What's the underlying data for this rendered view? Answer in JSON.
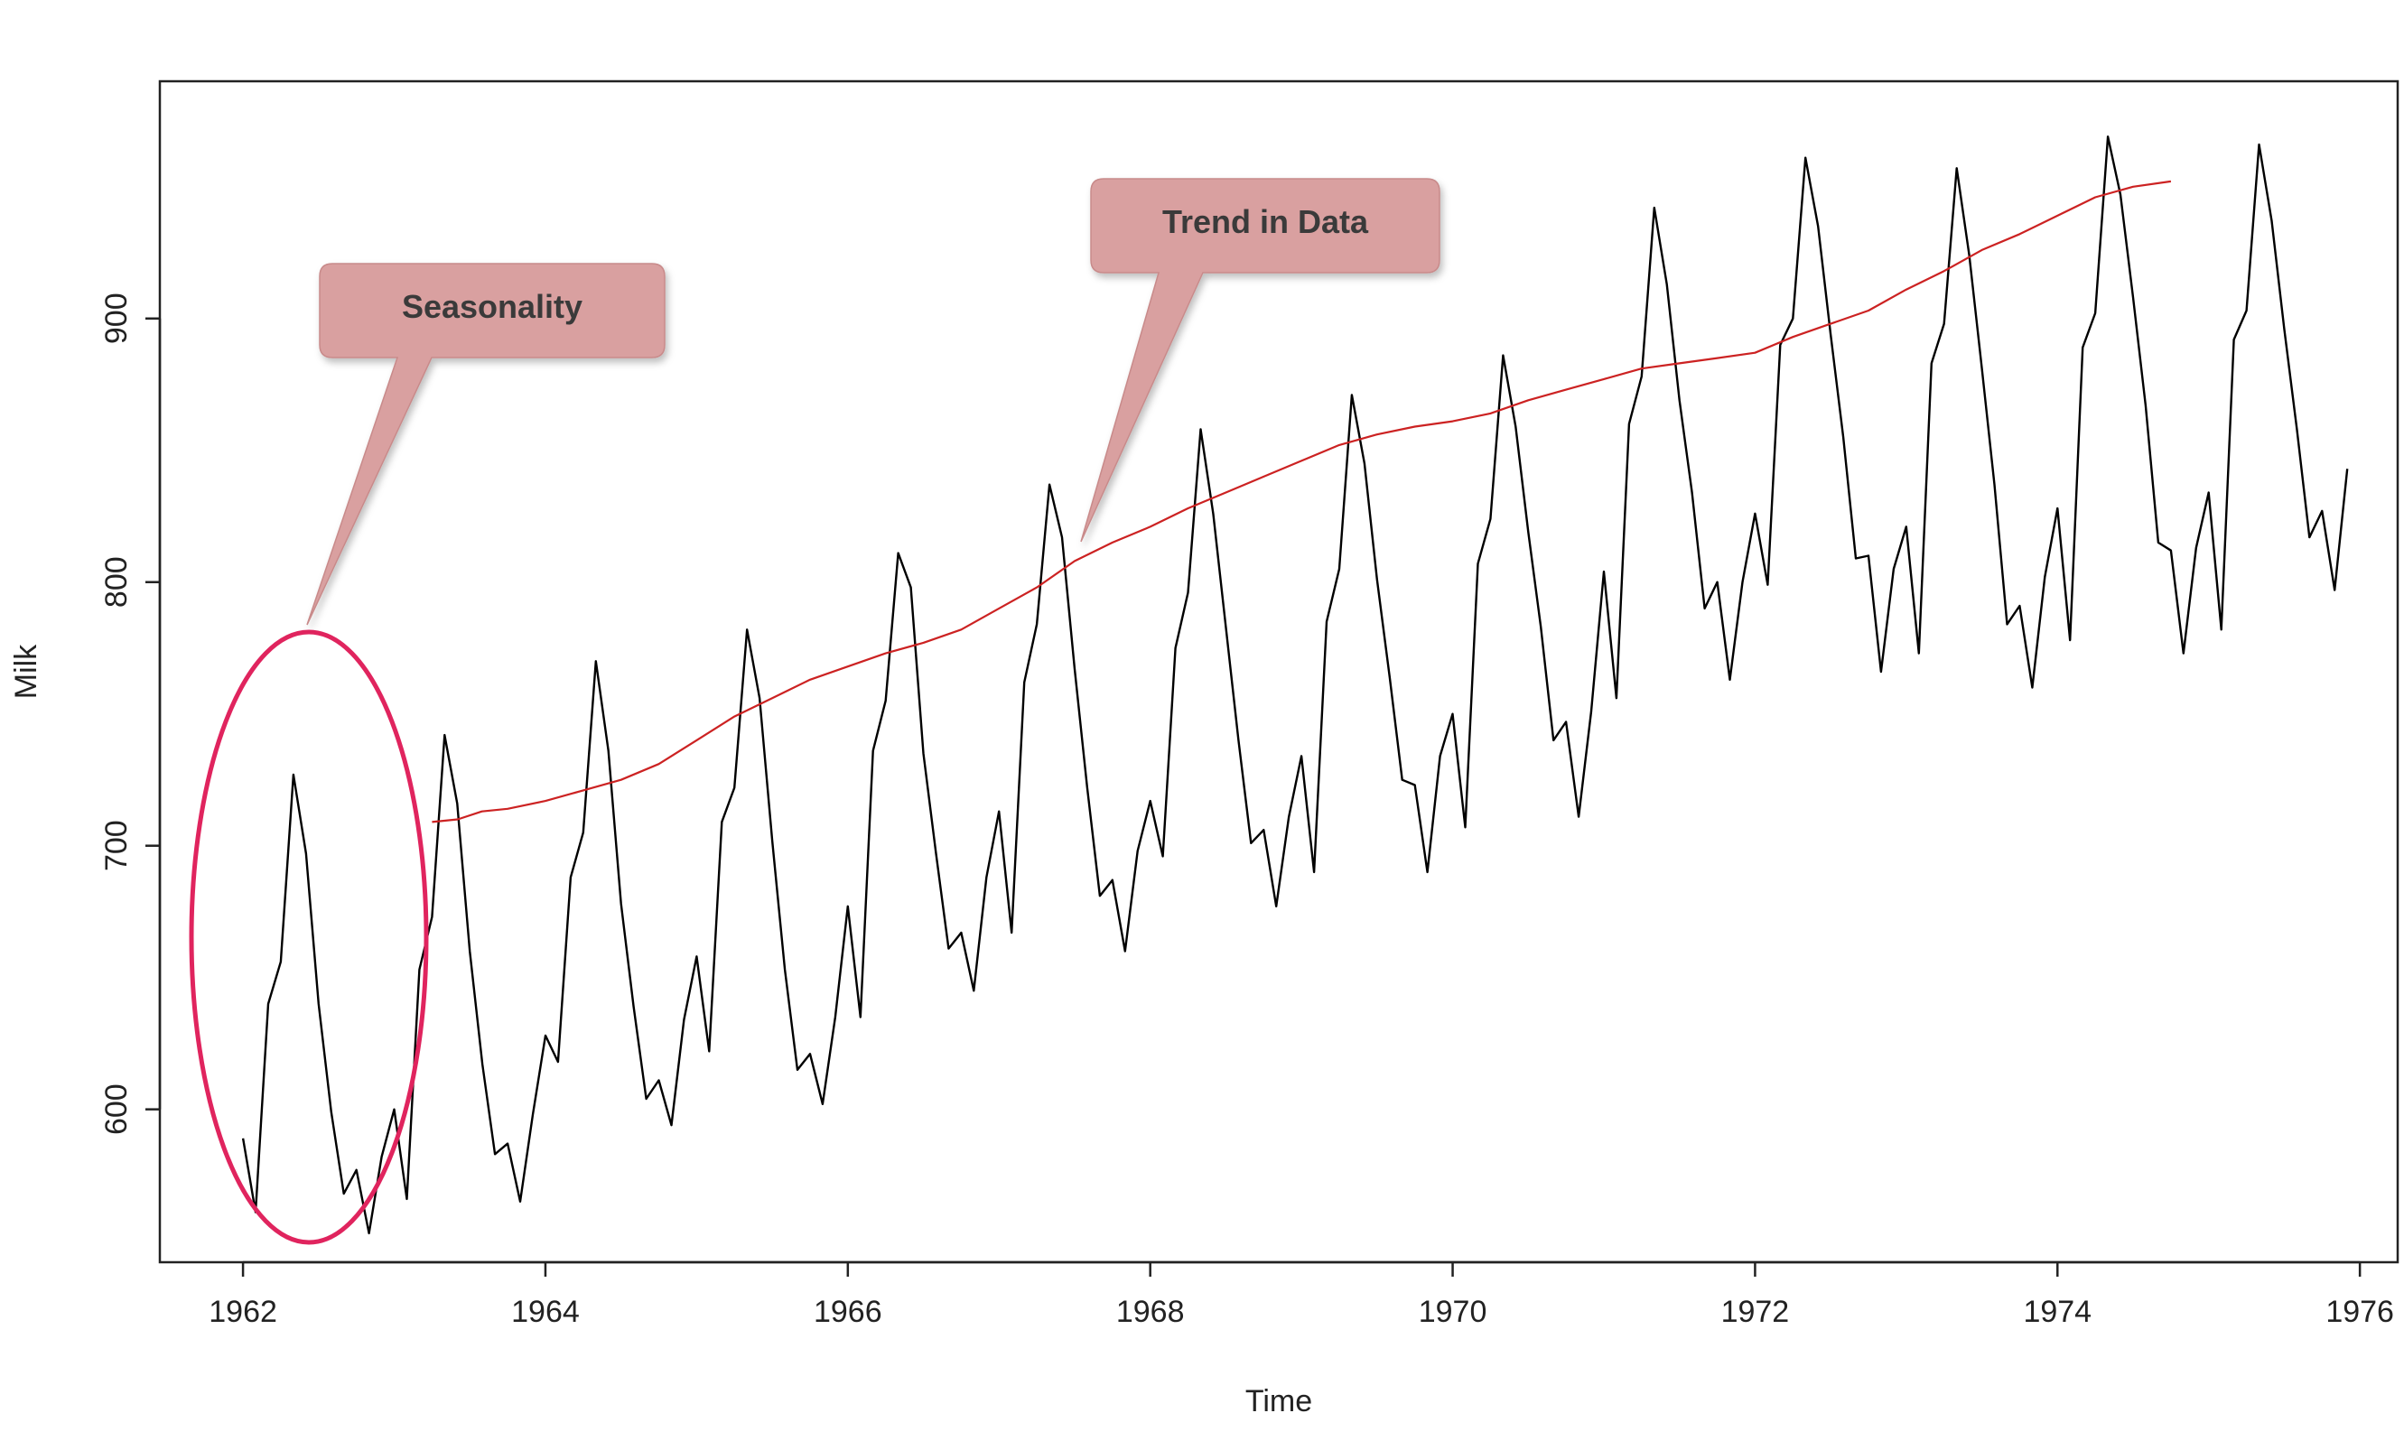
{
  "chart_data": {
    "type": "line",
    "title": "",
    "xlabel": "Time",
    "ylabel": "Milk",
    "xlim": [
      1961.45,
      1976.25
    ],
    "ylim": [
      542,
      990
    ],
    "x_ticks": [
      1962,
      1964,
      1966,
      1968,
      1970,
      1972,
      1974,
      1976
    ],
    "x_tick_labels": [
      "1962",
      "1964",
      "1966",
      "1968",
      "1970",
      "1972",
      "1974",
      "1976"
    ],
    "y_ticks": [
      600,
      700,
      800,
      900
    ],
    "y_tick_labels": [
      "600",
      "700",
      "800",
      "900"
    ],
    "grid": false,
    "series": [
      {
        "name": "Milk",
        "color": "#000000",
        "start": 1962,
        "frequency": 12,
        "values": [
          589,
          561,
          640,
          656,
          727,
          697,
          640,
          599,
          568,
          577,
          553,
          582,
          600,
          566,
          653,
          673,
          742,
          716,
          660,
          617,
          583,
          587,
          565,
          598,
          628,
          618,
          688,
          705,
          770,
          736,
          678,
          639,
          604,
          611,
          594,
          634,
          658,
          622,
          709,
          722,
          782,
          756,
          702,
          653,
          615,
          621,
          602,
          635,
          677,
          635,
          736,
          755,
          811,
          798,
          735,
          697,
          661,
          667,
          645,
          688,
          713,
          667,
          762,
          784,
          837,
          817,
          767,
          722,
          681,
          687,
          660,
          698,
          717,
          696,
          775,
          796,
          858,
          826,
          783,
          740,
          701,
          706,
          677,
          711,
          734,
          690,
          785,
          805,
          871,
          845,
          801,
          764,
          725,
          723,
          690,
          734,
          750,
          707,
          807,
          824,
          886,
          859,
          819,
          783,
          740,
          747,
          711,
          751,
          804,
          756,
          860,
          878,
          942,
          913,
          869,
          834,
          790,
          800,
          763,
          800,
          826,
          799,
          890,
          900,
          961,
          935,
          894,
          855,
          809,
          810,
          766,
          805,
          821,
          773,
          883,
          898,
          957,
          924,
          881,
          837,
          784,
          791,
          760,
          802,
          828,
          778,
          889,
          902,
          969,
          947,
          908,
          867,
          815,
          812,
          773,
          813,
          834,
          782,
          892,
          903,
          966,
          937,
          896,
          858,
          817,
          827,
          797,
          843
        ]
      },
      {
        "name": "Trend",
        "color": "#cc2222",
        "x": [
          1963.25,
          1963.42,
          1963.58,
          1963.75,
          1964.0,
          1964.25,
          1964.5,
          1964.75,
          1965.0,
          1965.25,
          1965.5,
          1965.75,
          1966.0,
          1966.25,
          1966.5,
          1966.75,
          1967.0,
          1967.25,
          1967.5,
          1967.75,
          1968.0,
          1968.25,
          1968.5,
          1968.75,
          1969.0,
          1969.25,
          1969.5,
          1969.75,
          1970.0,
          1970.25,
          1970.5,
          1970.75,
          1971.0,
          1971.25,
          1971.5,
          1971.75,
          1972.0,
          1972.25,
          1972.5,
          1972.75,
          1973.0,
          1973.25,
          1973.5,
          1973.75,
          1974.0,
          1974.25,
          1974.5,
          1974.75
        ],
        "values": [
          709,
          710,
          713,
          714,
          717,
          721,
          725,
          731,
          740,
          749,
          756,
          763,
          768,
          773,
          777,
          782,
          790,
          798,
          808,
          815,
          821,
          828,
          834,
          840,
          846,
          852,
          856,
          859,
          861,
          864,
          869,
          873,
          877,
          881,
          883,
          885,
          887,
          893,
          898,
          903,
          911,
          918,
          926,
          932,
          939,
          946,
          950,
          952
        ]
      }
    ],
    "annotations": [
      {
        "text": "Seasonality",
        "color": "#d9a0a0"
      },
      {
        "text": "Trend in Data",
        "color": "#d9a0a0"
      }
    ],
    "highlight_ellipse_color": "#e0245e"
  }
}
